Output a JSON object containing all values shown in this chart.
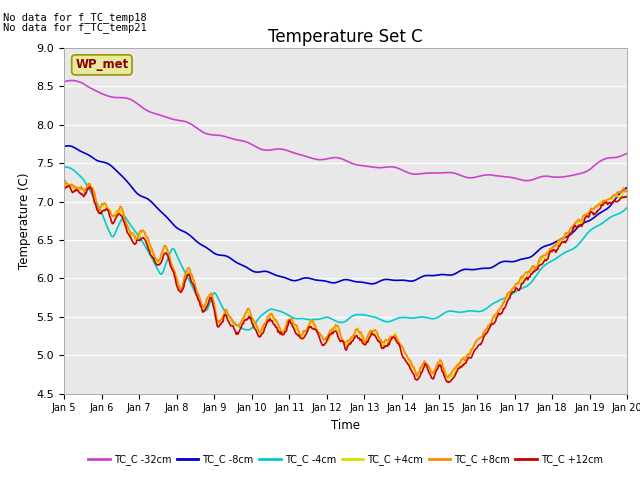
{
  "title": "Temperature Set C",
  "xlabel": "Time",
  "ylabel": "Temperature (C)",
  "ylim": [
    4.5,
    9.0
  ],
  "annotations": [
    "No data for f_TC_temp18",
    "No data for f_TC_temp21"
  ],
  "wp_met_label": "WP_met",
  "background_color": "#e8e8e8",
  "series": {
    "TC_C -32cm": {
      "color": "#cc44cc",
      "lw": 1.2
    },
    "TC_C -8cm": {
      "color": "#0000cc",
      "lw": 1.2
    },
    "TC_C -4cm": {
      "color": "#00cccc",
      "lw": 1.2
    },
    "TC_C +4cm": {
      "color": "#dddd00",
      "lw": 1.2
    },
    "TC_C +8cm": {
      "color": "#ff8800",
      "lw": 1.2
    },
    "TC_C +12cm": {
      "color": "#cc0000",
      "lw": 1.2
    }
  },
  "xtick_labels": [
    "Jan 5",
    "Jan 6",
    "Jan 7",
    "Jan 8",
    "Jan 9",
    "Jan 10",
    "Jan 11",
    "Jan 12",
    "Jan 13",
    "Jan 14",
    "Jan 15",
    "Jan 16",
    "Jan 17",
    "Jan 18",
    "Jan 19",
    "Jan 20"
  ],
  "ytick_values": [
    4.5,
    5.0,
    5.5,
    6.0,
    6.5,
    7.0,
    7.5,
    8.0,
    8.5,
    9.0
  ]
}
